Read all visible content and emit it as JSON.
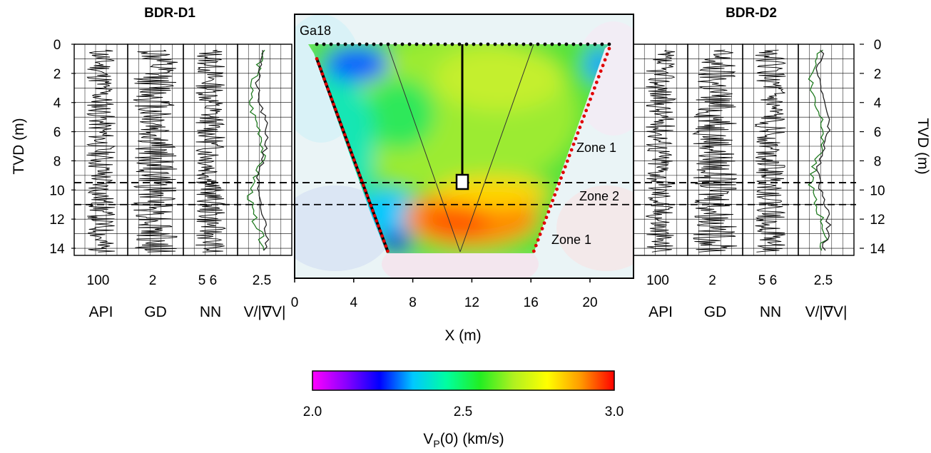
{
  "titles": {
    "left_well": "BDR-D1",
    "right_well": "BDR-D2"
  },
  "panel": {
    "well_label": "Ga18",
    "zones": [
      "Zone 1",
      "Zone 2",
      "Zone 1"
    ]
  },
  "axes": {
    "depth_label": "TVD (m)",
    "depth_ticks": [
      "0",
      "2",
      "4",
      "6",
      "8",
      "10",
      "12",
      "14"
    ],
    "x_label": "X (m)",
    "x_ticks": [
      "0",
      "4",
      "8",
      "12",
      "16",
      "20"
    ]
  },
  "tracks": {
    "left": [
      {
        "name": "API",
        "tick": "100"
      },
      {
        "name": "GD",
        "tick": "2"
      },
      {
        "name": "NN",
        "tick": "5  6"
      },
      {
        "name": "V/|∇V|",
        "tick": "2.5"
      }
    ],
    "right": [
      {
        "name": "API",
        "tick": "100"
      },
      {
        "name": "GD",
        "tick": "2"
      },
      {
        "name": "NN",
        "tick": "5  6"
      },
      {
        "name": "V/|∇V|",
        "tick": "2.5"
      }
    ]
  },
  "colorbar": {
    "ticks": [
      "2.0",
      "2.5",
      "3.0"
    ],
    "label_main": "V",
    "label_sub": "P",
    "label_rest": "(0) (km/s)",
    "colors": [
      "#ff00ff",
      "#8a00ff",
      "#0000ff",
      "#00c8ff",
      "#00ffa0",
      "#22ee22",
      "#b0f020",
      "#ffff00",
      "#ff9a00",
      "#ff0000"
    ]
  },
  "chart_data": {
    "type": "heatmap",
    "title": "",
    "xlabel": "X (m)",
    "ylabel": "TVD (m)",
    "xlim": [
      0,
      23
    ],
    "ylim": [
      14.5,
      0
    ],
    "colorbar_range_km_s": [
      2.0,
      3.0
    ],
    "zone_boundaries_tvd_m": [
      9.5,
      11.0
    ],
    "survey_line_tvd_m": 0,
    "survey_line_x_m": [
      1.5,
      21.3
    ],
    "left_ray_boundary": [
      [
        1.5,
        1.0
      ],
      [
        6.3,
        14.2
      ]
    ],
    "right_ray_boundary": [
      [
        21.3,
        0.3
      ],
      [
        16.2,
        14.2
      ]
    ],
    "well_ga18_x_m": 11.5,
    "well_ga18_bottom_tvd_m": 9.5
  }
}
